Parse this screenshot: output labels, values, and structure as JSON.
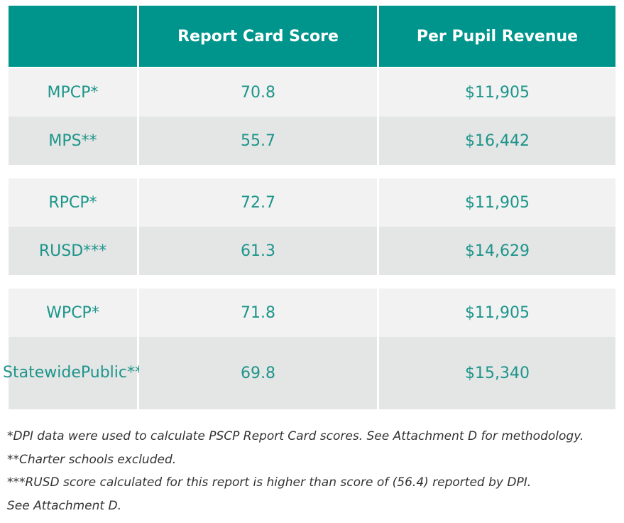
{
  "chart_data": {
    "type": "table",
    "columns": [
      "",
      "Report Card Score",
      "Per Pupil Revenue"
    ],
    "groups": [
      {
        "rows": [
          {
            "label": "MPCP*",
            "score": "70.8",
            "revenue": "$11,905"
          },
          {
            "label": "MPS**",
            "score": "55.7",
            "revenue": "$16,442"
          }
        ]
      },
      {
        "rows": [
          {
            "label": "RPCP*",
            "score": "72.7",
            "revenue": "$11,905"
          },
          {
            "label": "RUSD***",
            "score": "61.3",
            "revenue": "$14,629"
          }
        ]
      },
      {
        "rows": [
          {
            "label": "WPCP*",
            "score": "71.8",
            "revenue": "$11,905"
          },
          {
            "label": "Statewide Public**",
            "label_line1": "Statewide",
            "label_line2": "Public**",
            "score": "69.8",
            "revenue": "$15,340"
          }
        ]
      }
    ]
  },
  "footnotes": [
    "*DPI data were used to calculate PSCP Report Card scores. See Attachment D for methodology.",
    "**Charter schools excluded.",
    "***RUSD score calculated for this report is higher than score of (56.4) reported by DPI.",
    "See Attachment D."
  ],
  "colors": {
    "header_bg": "#00958c",
    "text_teal": "#1d958b",
    "row_light": "#f1f2f1",
    "row_dark": "#e4e5e5"
  }
}
